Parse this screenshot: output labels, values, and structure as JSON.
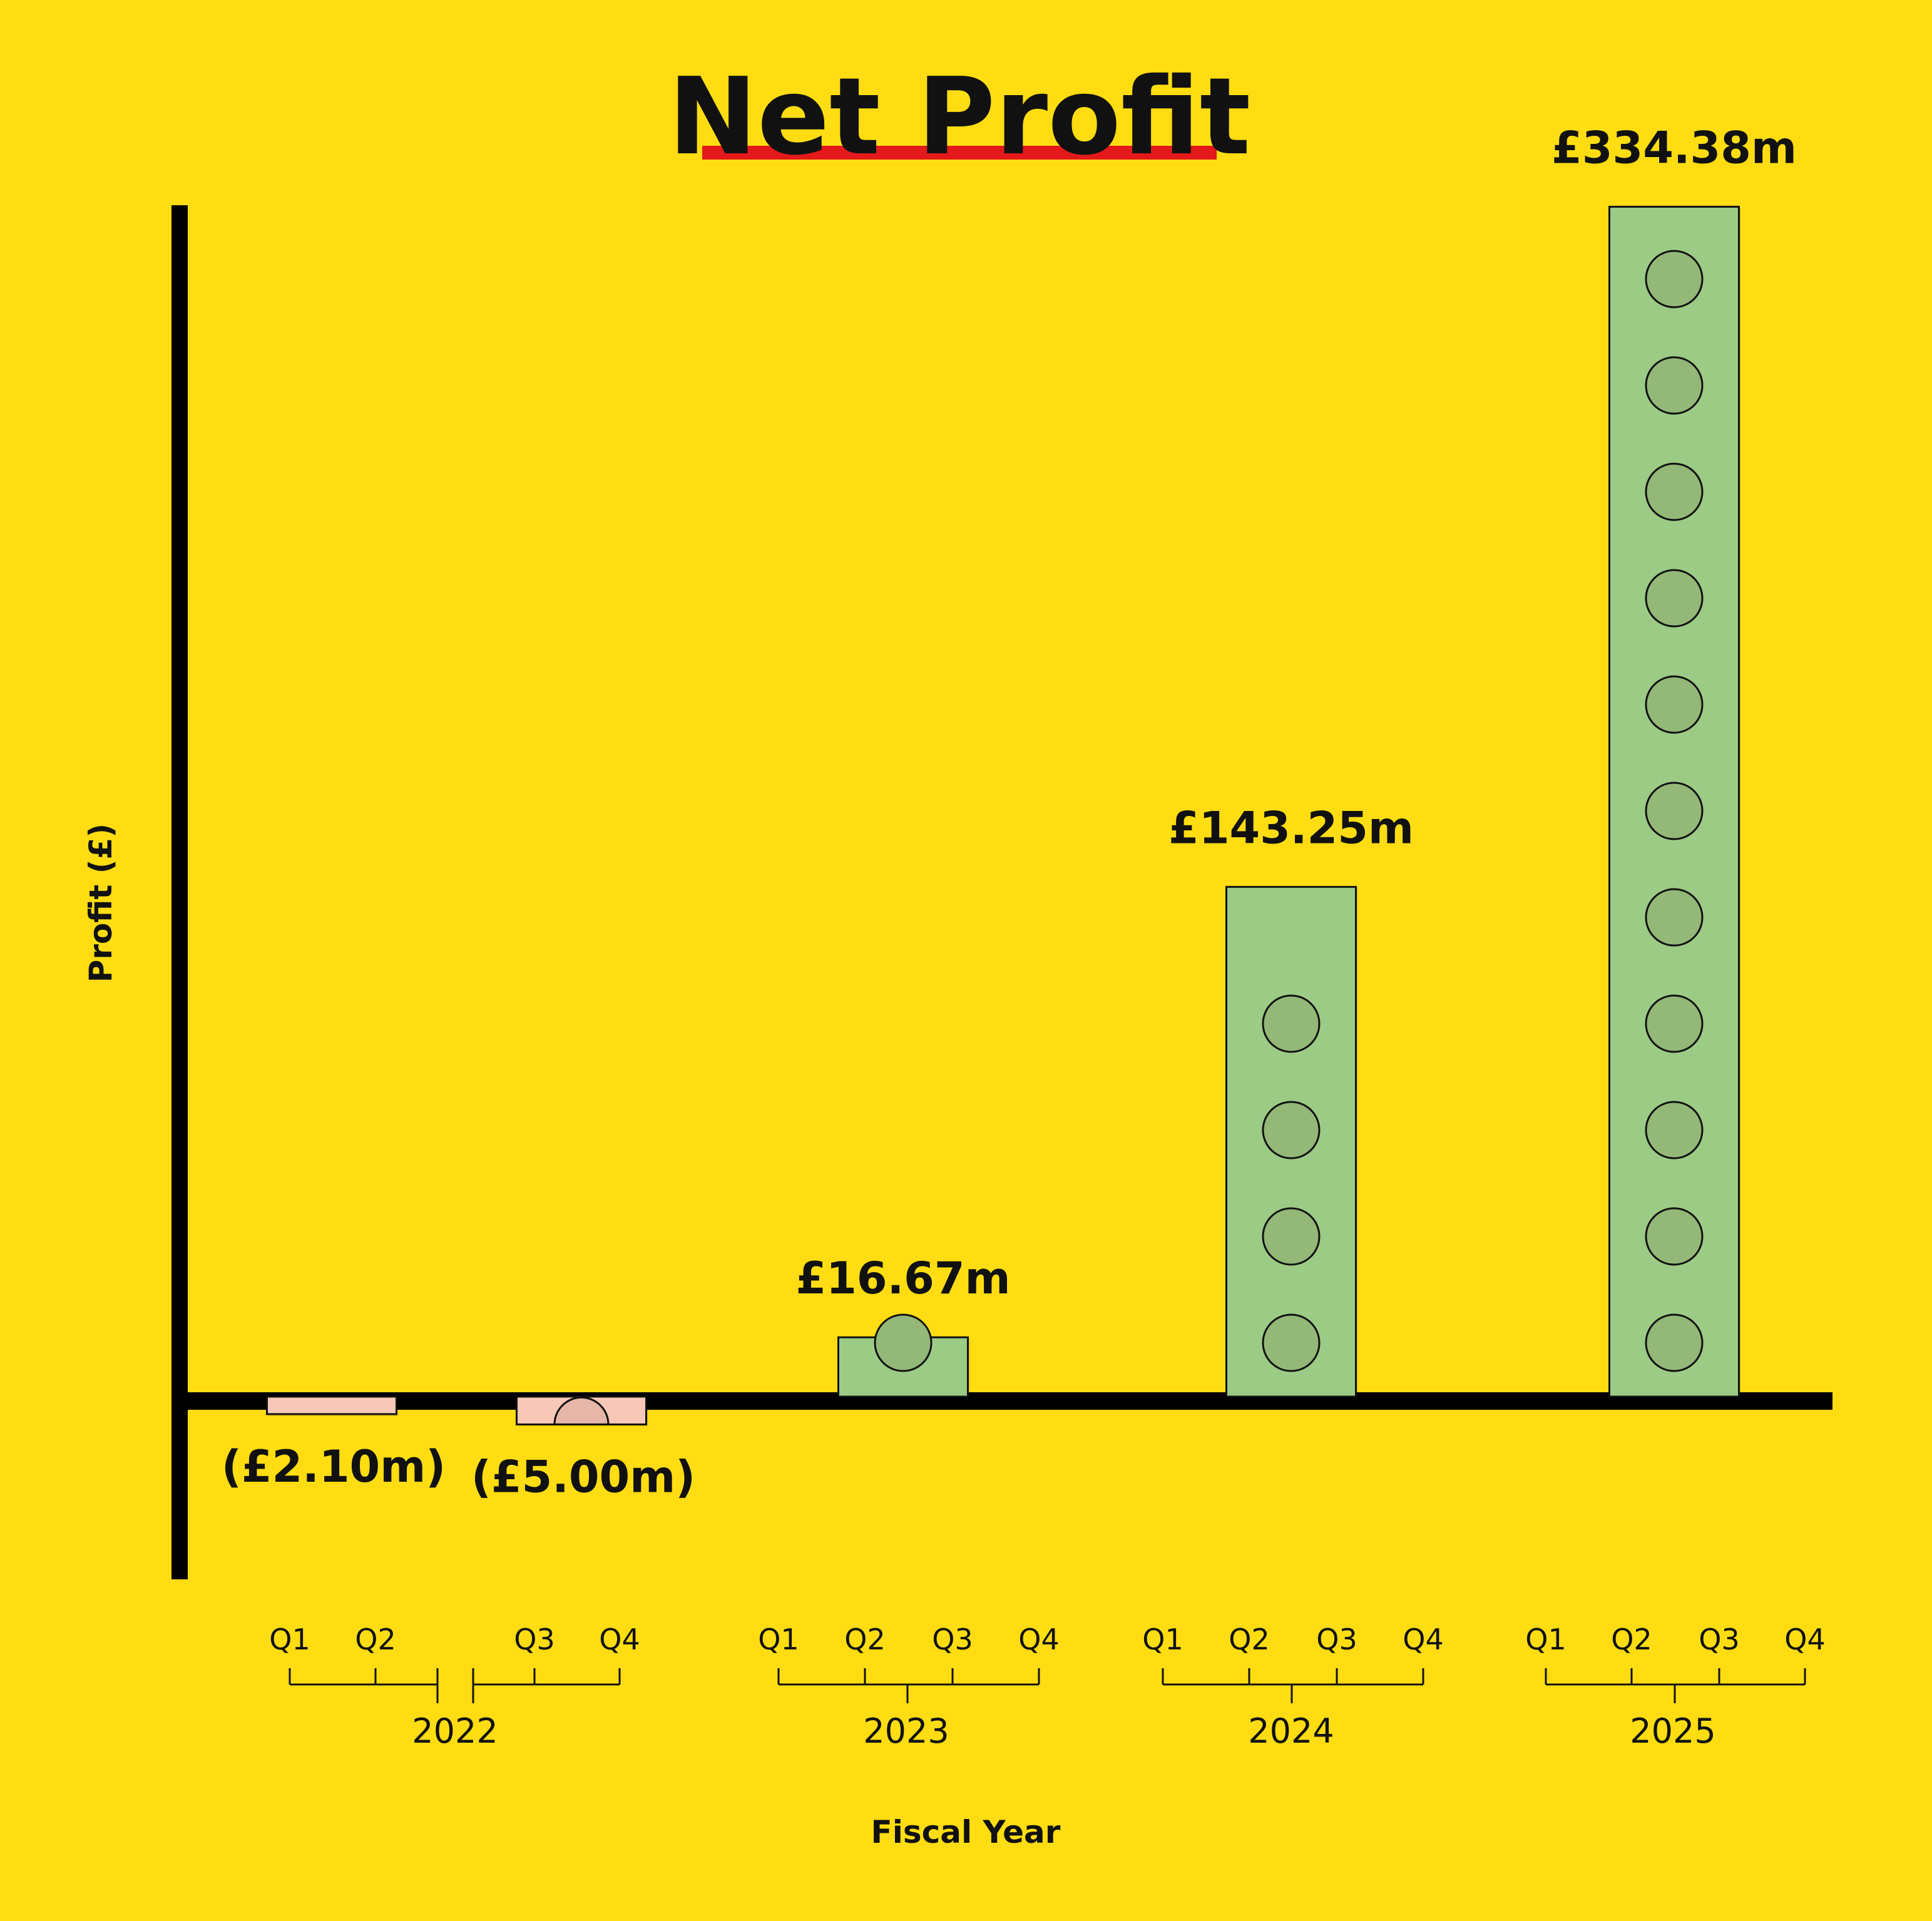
{
  "chart_data": {
    "type": "bar",
    "title": "Net Profit",
    "xlabel": "Fiscal Year",
    "ylabel": "Profit (£)",
    "bars": [
      {
        "label": "(£2.10m)",
        "value": -2.1,
        "year": "2022",
        "quarters": [
          "Q1",
          "Q2"
        ]
      },
      {
        "label": "(£5.00m)",
        "value": -5.0,
        "year": "2022",
        "quarters": [
          "Q3",
          "Q4"
        ]
      },
      {
        "label": "£16.67m",
        "value": 16.67,
        "year": "2023",
        "quarters": [
          "Q1",
          "Q2",
          "Q3",
          "Q4"
        ]
      },
      {
        "label": "£143.25m",
        "value": 143.25,
        "year": "2024",
        "quarters": [
          "Q1",
          "Q2",
          "Q3",
          "Q4"
        ]
      },
      {
        "label": "£334.38m",
        "value": 334.38,
        "year": "2025",
        "quarters": [
          "Q1",
          "Q2",
          "Q3",
          "Q4"
        ]
      }
    ],
    "years": [
      "2022",
      "2023",
      "2024",
      "2025"
    ],
    "grid": false,
    "legend": "none"
  },
  "colors": {
    "background": "#FFDD12",
    "positive_bar": "#9CCB85",
    "positive_coin": "#93B878",
    "negative_bar": "#F7C8B8",
    "negative_coin": "#E6B7A8",
    "title_underline": "#E3191C",
    "axis": "#000000"
  }
}
